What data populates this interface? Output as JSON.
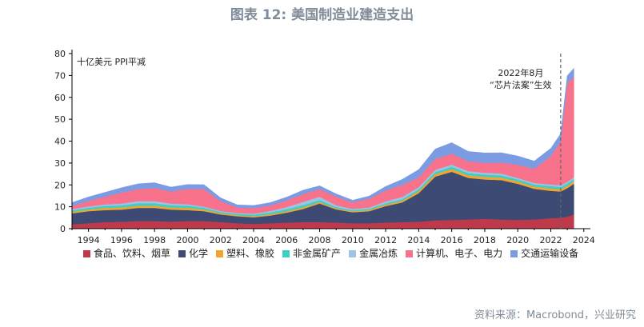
{
  "title": "图表 12: 美国制造业建造支出",
  "source": "资料来源：Macrobond，兴业研究",
  "chart_data": {
    "type": "area",
    "stacked": true,
    "ylabel": "十亿美元 PPI平减",
    "ylim": [
      0,
      80
    ],
    "yticks": [
      0,
      10,
      20,
      30,
      40,
      50,
      60,
      70,
      80
    ],
    "xlim": [
      1993.0,
      2024.4
    ],
    "xticks": [
      1994,
      1996,
      1998,
      2000,
      2002,
      2004,
      2006,
      2008,
      2010,
      2012,
      2014,
      2016,
      2018,
      2020,
      2022,
      2024
    ],
    "annotation": {
      "x": 2022.6,
      "text_line1": "2022年8月",
      "text_line2": "“芯片法案”生效"
    },
    "x": [
      1993.0,
      1994.0,
      1995.0,
      1996.0,
      1997.0,
      1998.0,
      1999.0,
      2000.0,
      2001.0,
      2002.0,
      2003.0,
      2004.0,
      2005.0,
      2006.0,
      2007.0,
      2008.0,
      2009.0,
      2010.0,
      2011.0,
      2012.0,
      2013.0,
      2014.0,
      2015.0,
      2016.0,
      2017.0,
      2018.0,
      2019.0,
      2020.0,
      2021.0,
      2022.0,
      2022.6,
      2023.0,
      2023.4
    ],
    "series": [
      {
        "name": "食品、饮料、烟草",
        "color": "#c0394b",
        "values": [
          2.0,
          2.5,
          3.0,
          3.2,
          3.5,
          3.5,
          3.2,
          3.5,
          3.5,
          3.0,
          2.5,
          2.2,
          2.5,
          2.8,
          3.0,
          3.0,
          2.8,
          2.5,
          2.5,
          2.8,
          3.0,
          3.2,
          3.8,
          4.0,
          4.2,
          4.5,
          4.2,
          4.0,
          4.2,
          4.8,
          5.0,
          5.5,
          6.5
        ]
      },
      {
        "name": "化学",
        "color": "#3d4a73",
        "values": [
          5.0,
          5.5,
          5.5,
          5.5,
          6.0,
          6.0,
          5.5,
          5.0,
          4.5,
          3.5,
          3.2,
          3.0,
          3.5,
          4.5,
          6.0,
          8.5,
          6.0,
          5.0,
          5.5,
          7.5,
          9.0,
          13.0,
          20.0,
          22.0,
          19.0,
          18.0,
          18.0,
          16.5,
          14.0,
          12.5,
          12.0,
          13.0,
          14.0
        ]
      },
      {
        "name": "塑料、橡胶",
        "color": "#f0a531",
        "values": [
          0.7,
          0.8,
          1.0,
          1.0,
          1.0,
          1.0,
          1.0,
          1.0,
          0.8,
          0.6,
          0.5,
          0.5,
          0.6,
          0.7,
          0.8,
          0.7,
          0.5,
          0.5,
          0.6,
          0.7,
          0.8,
          1.0,
          1.2,
          1.3,
          1.2,
          1.2,
          1.2,
          1.1,
          1.1,
          1.1,
          1.1,
          1.1,
          1.2
        ]
      },
      {
        "name": "非金属矿产",
        "color": "#3ecfc4",
        "values": [
          0.7,
          0.8,
          0.9,
          1.0,
          1.1,
          1.1,
          1.0,
          1.0,
          0.8,
          0.6,
          0.6,
          0.7,
          0.8,
          0.9,
          1.0,
          0.9,
          0.6,
          0.5,
          0.5,
          0.6,
          0.7,
          0.8,
          0.9,
          1.0,
          1.0,
          1.0,
          1.0,
          0.9,
          0.9,
          1.0,
          1.0,
          1.0,
          1.0
        ]
      },
      {
        "name": "金属冶炼",
        "color": "#9fc3e3",
        "values": [
          0.5,
          0.6,
          0.7,
          0.8,
          1.0,
          1.0,
          0.8,
          0.7,
          0.5,
          0.4,
          0.4,
          0.5,
          0.7,
          1.0,
          1.5,
          1.5,
          0.8,
          0.5,
          0.6,
          0.9,
          1.0,
          1.0,
          1.0,
          1.0,
          0.9,
          0.9,
          0.8,
          0.7,
          0.7,
          0.8,
          0.8,
          0.8,
          0.8
        ]
      },
      {
        "name": "计算机、电子、电力",
        "color": "#f7728a",
        "values": [
          1.5,
          2.5,
          3.5,
          5.0,
          5.5,
          6.0,
          5.5,
          7.0,
          8.0,
          4.5,
          2.5,
          2.5,
          2.5,
          3.0,
          3.5,
          3.5,
          4.0,
          3.0,
          4.0,
          5.0,
          5.5,
          4.5,
          5.0,
          5.0,
          4.5,
          4.5,
          5.0,
          6.0,
          6.5,
          13.0,
          20.0,
          45.0,
          46.0
        ]
      },
      {
        "name": "交通运输设备",
        "color": "#7b9be3",
        "values": [
          1.5,
          1.8,
          2.0,
          2.2,
          2.4,
          2.4,
          2.0,
          2.0,
          2.0,
          1.5,
          1.2,
          1.2,
          1.3,
          1.5,
          1.8,
          1.5,
          1.2,
          1.0,
          1.2,
          1.8,
          2.5,
          3.5,
          4.5,
          5.0,
          4.5,
          4.5,
          4.5,
          4.0,
          3.5,
          3.5,
          3.5,
          3.5,
          3.8
        ]
      }
    ]
  }
}
